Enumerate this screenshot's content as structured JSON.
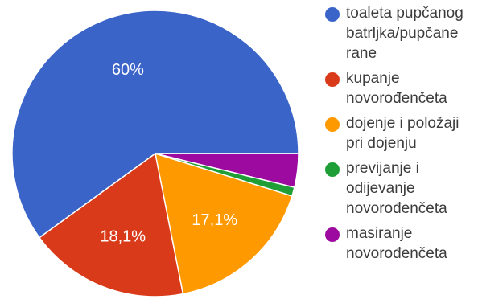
{
  "chart_data": {
    "type": "pie",
    "slices": [
      {
        "label": "toaleta pupčanog\nbatrljka/pupčane\nrane",
        "value": 60,
        "display": "60%",
        "color": "#3a64c8"
      },
      {
        "label": "kupanje\nnovorođenčeta",
        "value": 18.1,
        "display": "18,1%",
        "color": "#d93b1a"
      },
      {
        "label": "dojenje i položaji\npri dojenju",
        "value": 17.1,
        "display": "17,1%",
        "color": "#ff9900"
      },
      {
        "label": "previjanje i\nodijevanje\nnovorođenčeta",
        "value": 1,
        "display": "",
        "color": "#1f9e37"
      },
      {
        "label": "masiranje\nnovorođenčeta",
        "value": 3.8,
        "display": "",
        "color": "#9c0aa0"
      }
    ],
    "start": "east",
    "direction": "counterclockwise",
    "legend_position": "right"
  }
}
